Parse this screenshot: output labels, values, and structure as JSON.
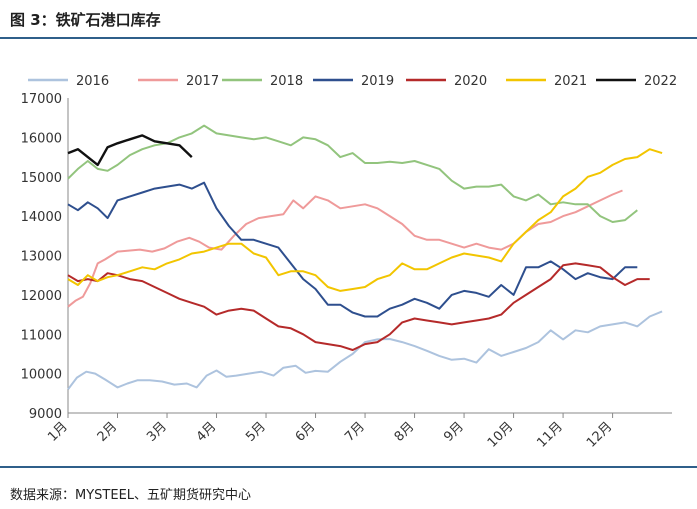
{
  "header": {
    "title": "图 3：铁矿石港口库存"
  },
  "footer": {
    "source": "数据来源：MYSTEEL、五矿期货研究中心"
  },
  "chart_data": {
    "type": "line",
    "title": "图 3：铁矿石港口库存",
    "xlabel": "",
    "ylabel": "",
    "ylim": [
      9000,
      17000
    ],
    "yticks": [
      9000,
      10000,
      11000,
      12000,
      13000,
      14000,
      15000,
      16000,
      17000
    ],
    "xlim": [
      1,
      13.2
    ],
    "xticks": [
      {
        "value": 1,
        "label": "1月"
      },
      {
        "value": 2,
        "label": "2月"
      },
      {
        "value": 3,
        "label": "3月"
      },
      {
        "value": 4,
        "label": "4月"
      },
      {
        "value": 5,
        "label": "5月"
      },
      {
        "value": 6,
        "label": "6月"
      },
      {
        "value": 7,
        "label": "7月"
      },
      {
        "value": 8,
        "label": "8月"
      },
      {
        "value": 9,
        "label": "9月"
      },
      {
        "value": 10,
        "label": "10月"
      },
      {
        "value": 11,
        "label": "11月"
      },
      {
        "value": 12,
        "label": "12月"
      }
    ],
    "grid": false,
    "legend_position": "top",
    "series": [
      {
        "name": "2016",
        "color": "#adc3de",
        "x": [
          1.0,
          1.18,
          1.37,
          1.55,
          1.75,
          2.0,
          2.2,
          2.4,
          2.65,
          2.9,
          3.15,
          3.4,
          3.6,
          3.8,
          4.0,
          4.2,
          4.4,
          4.65,
          4.9,
          5.15,
          5.35,
          5.6,
          5.8,
          6.0,
          6.25,
          6.5,
          6.75,
          7.0,
          7.25,
          7.5,
          7.75,
          8.0,
          8.25,
          8.5,
          8.75,
          9.0,
          9.25,
          9.5,
          9.75,
          10.0,
          10.25,
          10.5,
          10.75,
          11.0,
          11.25,
          11.5,
          11.75,
          12.0,
          12.25,
          12.5,
          12.75,
          13.0
        ],
        "values": [
          9600,
          9900,
          10050,
          10000,
          9850,
          9650,
          9750,
          9830,
          9830,
          9800,
          9720,
          9750,
          9650,
          9950,
          10080,
          9920,
          9950,
          10000,
          10050,
          9950,
          10150,
          10200,
          10020,
          10070,
          10050,
          10300,
          10500,
          10800,
          10870,
          10880,
          10800,
          10700,
          10580,
          10450,
          10350,
          10380,
          10280,
          10620,
          10450,
          10550,
          10650,
          10800,
          11100,
          10870,
          11100,
          11050,
          11200,
          11250,
          11300,
          11200,
          11450,
          11580
        ]
      },
      {
        "name": "2017",
        "color": "#ef9a9a",
        "x": [
          1.0,
          1.15,
          1.3,
          1.45,
          1.6,
          1.75,
          2.0,
          2.2,
          2.45,
          2.7,
          2.95,
          3.2,
          3.45,
          3.65,
          3.85,
          4.1,
          4.35,
          4.6,
          4.85,
          5.1,
          5.35,
          5.55,
          5.75,
          6.0,
          6.25,
          6.5,
          6.75,
          7.0,
          7.25,
          7.5,
          7.75,
          8.0,
          8.25,
          8.5,
          8.75,
          9.0,
          9.25,
          9.5,
          9.75,
          10.0,
          10.25,
          10.5,
          10.75,
          11.0,
          11.25,
          11.5,
          11.75,
          12.0,
          12.2
        ],
        "values": [
          11700,
          11850,
          11950,
          12300,
          12800,
          12900,
          13100,
          13120,
          13150,
          13100,
          13180,
          13350,
          13450,
          13350,
          13200,
          13150,
          13500,
          13800,
          13950,
          14000,
          14050,
          14400,
          14200,
          14500,
          14400,
          14200,
          14250,
          14300,
          14200,
          14000,
          13800,
          13500,
          13400,
          13400,
          13300,
          13200,
          13300,
          13200,
          13150,
          13300,
          13600,
          13800,
          13850,
          14000,
          14100,
          14250,
          14400,
          14550,
          14650
        ]
      },
      {
        "name": "2018",
        "color": "#92c47d",
        "x": [
          1.0,
          1.2,
          1.4,
          1.6,
          1.8,
          2.0,
          2.25,
          2.5,
          2.75,
          3.0,
          3.25,
          3.5,
          3.75,
          4.0,
          4.25,
          4.5,
          4.75,
          5.0,
          5.25,
          5.5,
          5.75,
          6.0,
          6.25,
          6.5,
          6.75,
          7.0,
          7.25,
          7.5,
          7.75,
          8.0,
          8.25,
          8.5,
          8.75,
          9.0,
          9.25,
          9.5,
          9.75,
          10.0,
          10.25,
          10.5,
          10.75,
          11.0,
          11.25,
          11.5,
          11.75,
          12.0,
          12.25,
          12.5
        ],
        "values": [
          14950,
          15200,
          15400,
          15200,
          15150,
          15300,
          15550,
          15700,
          15800,
          15850,
          16000,
          16100,
          16300,
          16100,
          16050,
          16000,
          15950,
          16000,
          15900,
          15800,
          16000,
          15950,
          15800,
          15500,
          15600,
          15350,
          15350,
          15380,
          15350,
          15400,
          15300,
          15200,
          14900,
          14700,
          14750,
          14750,
          14800,
          14500,
          14400,
          14550,
          14300,
          14350,
          14300,
          14300,
          14000,
          13850,
          13900,
          14150
        ]
      },
      {
        "name": "2019",
        "color": "#2e4f8e",
        "x": [
          1.0,
          1.2,
          1.4,
          1.6,
          1.8,
          2.0,
          2.25,
          2.5,
          2.75,
          3.0,
          3.25,
          3.5,
          3.75,
          4.0,
          4.25,
          4.5,
          4.75,
          5.0,
          5.25,
          5.5,
          5.75,
          6.0,
          6.25,
          6.5,
          6.75,
          7.0,
          7.25,
          7.5,
          7.75,
          8.0,
          8.25,
          8.5,
          8.75,
          9.0,
          9.25,
          9.5,
          9.75,
          10.0,
          10.25,
          10.5,
          10.75,
          11.0,
          11.25,
          11.5,
          11.75,
          12.0,
          12.25,
          12.5
        ],
        "values": [
          14300,
          14150,
          14350,
          14200,
          13950,
          14400,
          14500,
          14600,
          14700,
          14750,
          14800,
          14700,
          14850,
          14200,
          13750,
          13400,
          13400,
          13300,
          13200,
          12800,
          12400,
          12150,
          11750,
          11750,
          11550,
          11450,
          11450,
          11650,
          11750,
          11900,
          11800,
          11650,
          12000,
          12100,
          12050,
          11950,
          12250,
          12000,
          12700,
          12700,
          12850,
          12650,
          12400,
          12550,
          12450,
          12400,
          12700,
          12700
        ]
      },
      {
        "name": "2020",
        "color": "#b52a2a",
        "x": [
          1.0,
          1.2,
          1.4,
          1.6,
          1.8,
          2.0,
          2.25,
          2.5,
          2.75,
          3.0,
          3.25,
          3.5,
          3.75,
          4.0,
          4.25,
          4.5,
          4.75,
          5.0,
          5.25,
          5.5,
          5.75,
          6.0,
          6.25,
          6.5,
          6.75,
          7.0,
          7.25,
          7.5,
          7.75,
          8.0,
          8.25,
          8.5,
          8.75,
          9.0,
          9.25,
          9.5,
          9.75,
          10.0,
          10.25,
          10.5,
          10.75,
          11.0,
          11.25,
          11.5,
          11.75,
          12.0,
          12.25,
          12.5,
          12.75
        ],
        "values": [
          12500,
          12350,
          12400,
          12350,
          12550,
          12500,
          12400,
          12350,
          12200,
          12050,
          11900,
          11800,
          11700,
          11500,
          11600,
          11650,
          11600,
          11400,
          11200,
          11150,
          11000,
          10800,
          10750,
          10700,
          10600,
          10750,
          10800,
          11000,
          11300,
          11400,
          11350,
          11300,
          11250,
          11300,
          11350,
          11400,
          11500,
          11800,
          12000,
          12200,
          12400,
          12750,
          12800,
          12750,
          12700,
          12450,
          12250,
          12400,
          12400
        ]
      },
      {
        "name": "2021",
        "color": "#f2c500",
        "x": [
          1.0,
          1.2,
          1.4,
          1.6,
          1.8,
          2.0,
          2.25,
          2.5,
          2.75,
          3.0,
          3.25,
          3.5,
          3.75,
          4.0,
          4.25,
          4.5,
          4.75,
          5.0,
          5.25,
          5.5,
          5.75,
          6.0,
          6.25,
          6.5,
          6.75,
          7.0,
          7.25,
          7.5,
          7.75,
          8.0,
          8.25,
          8.5,
          8.75,
          9.0,
          9.25,
          9.5,
          9.75,
          10.0,
          10.25,
          10.5,
          10.75,
          11.0,
          11.25,
          11.5,
          11.75,
          12.0,
          12.25,
          12.5,
          12.75,
          13.0
        ],
        "values": [
          12400,
          12250,
          12500,
          12350,
          12450,
          12500,
          12600,
          12700,
          12650,
          12800,
          12900,
          13050,
          13100,
          13200,
          13300,
          13300,
          13050,
          12950,
          12500,
          12600,
          12600,
          12500,
          12200,
          12100,
          12150,
          12200,
          12400,
          12500,
          12800,
          12650,
          12650,
          12800,
          12950,
          13050,
          13000,
          12950,
          12850,
          13300,
          13600,
          13900,
          14100,
          14500,
          14700,
          15000,
          15100,
          15300,
          15450,
          15500,
          15700,
          15600
        ]
      },
      {
        "name": "2022",
        "color": "#111111",
        "x": [
          1.0,
          1.2,
          1.4,
          1.6,
          1.8,
          2.0,
          2.25,
          2.5,
          2.75,
          3.0,
          3.25,
          3.5
        ],
        "values": [
          15600,
          15700,
          15500,
          15300,
          15750,
          15850,
          15950,
          16050,
          15900,
          15850,
          15800,
          15500
        ]
      }
    ]
  }
}
